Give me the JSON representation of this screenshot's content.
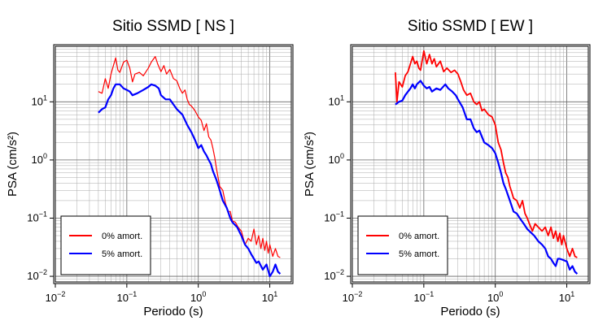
{
  "chart_data": [
    {
      "type": "line",
      "title": "Sitio SSMD [ NS ]",
      "xlabel": "Periodo (s)",
      "ylabel": "PSA (cm/s²)",
      "xscale": "log",
      "yscale": "log",
      "xlim": [
        0.01,
        20
      ],
      "ylim": [
        0.008,
        90
      ],
      "grid": true,
      "legend_position": "bottom-left",
      "x_ticks": [
        {
          "v": 0.01,
          "base": "10",
          "exp": "−2"
        },
        {
          "v": 0.1,
          "base": "10",
          "exp": "−1"
        },
        {
          "v": 1,
          "base": "10",
          "exp": "0"
        },
        {
          "v": 10,
          "base": "10",
          "exp": "1"
        }
      ],
      "y_ticks": [
        {
          "v": 0.01,
          "base": "10",
          "exp": "−2"
        },
        {
          "v": 0.1,
          "base": "10",
          "exp": "−1"
        },
        {
          "v": 1,
          "base": "10",
          "exp": "0"
        },
        {
          "v": 10,
          "base": "10",
          "exp": "1"
        }
      ],
      "series": [
        {
          "name": "0% amort.",
          "color": "#ff0000",
          "width": 1.2,
          "points": [
            [
              0.04,
              15
            ],
            [
              0.045,
              14
            ],
            [
              0.05,
              25
            ],
            [
              0.055,
              17
            ],
            [
              0.06,
              30
            ],
            [
              0.065,
              42
            ],
            [
              0.07,
              57
            ],
            [
              0.075,
              35
            ],
            [
              0.08,
              32
            ],
            [
              0.09,
              48
            ],
            [
              0.1,
              52
            ],
            [
              0.11,
              38
            ],
            [
              0.12,
              22
            ],
            [
              0.13,
              30
            ],
            [
              0.15,
              32
            ],
            [
              0.17,
              28
            ],
            [
              0.2,
              38
            ],
            [
              0.22,
              48
            ],
            [
              0.25,
              60
            ],
            [
              0.27,
              45
            ],
            [
              0.3,
              33
            ],
            [
              0.33,
              42
            ],
            [
              0.36,
              30
            ],
            [
              0.4,
              36
            ],
            [
              0.45,
              25
            ],
            [
              0.5,
              23
            ],
            [
              0.55,
              17
            ],
            [
              0.6,
              14
            ],
            [
              0.65,
              16
            ],
            [
              0.7,
              11
            ],
            [
              0.75,
              9
            ],
            [
              0.8,
              8.5
            ],
            [
              0.9,
              7
            ],
            [
              1.0,
              5.5
            ],
            [
              1.1,
              4.8
            ],
            [
              1.2,
              3.2
            ],
            [
              1.3,
              4.2
            ],
            [
              1.4,
              2.5
            ],
            [
              1.5,
              2.2
            ],
            [
              1.6,
              1.6
            ],
            [
              1.7,
              1.1
            ],
            [
              1.8,
              0.7
            ],
            [
              2.0,
              0.35
            ],
            [
              2.2,
              0.3
            ],
            [
              2.4,
              0.18
            ],
            [
              2.6,
              0.13
            ],
            [
              2.8,
              0.13
            ],
            [
              3.0,
              0.09
            ],
            [
              3.3,
              0.085
            ],
            [
              3.6,
              0.07
            ],
            [
              4.0,
              0.06
            ],
            [
              4.5,
              0.035
            ],
            [
              5.0,
              0.045
            ],
            [
              5.5,
              0.04
            ],
            [
              6.0,
              0.065
            ],
            [
              6.5,
              0.035
            ],
            [
              7.0,
              0.05
            ],
            [
              7.5,
              0.03
            ],
            [
              8.0,
              0.045
            ],
            [
              8.5,
              0.028
            ],
            [
              9.0,
              0.04
            ],
            [
              9.5,
              0.025
            ],
            [
              10.0,
              0.035
            ],
            [
              11.0,
              0.022
            ],
            [
              12.0,
              0.03
            ],
            [
              13.0,
              0.022
            ],
            [
              14.0,
              0.021
            ]
          ]
        },
        {
          "name": "5% amort.",
          "color": "#0000ff",
          "width": 2.2,
          "points": [
            [
              0.04,
              6.5
            ],
            [
              0.045,
              7.5
            ],
            [
              0.05,
              8
            ],
            [
              0.055,
              11
            ],
            [
              0.06,
              13
            ],
            [
              0.065,
              17
            ],
            [
              0.07,
              20
            ],
            [
              0.08,
              20
            ],
            [
              0.09,
              17
            ],
            [
              0.1,
              16
            ],
            [
              0.11,
              15
            ],
            [
              0.12,
              13
            ],
            [
              0.14,
              14
            ],
            [
              0.17,
              16
            ],
            [
              0.2,
              18
            ],
            [
              0.22,
              20
            ],
            [
              0.25,
              19
            ],
            [
              0.28,
              17
            ],
            [
              0.3,
              13
            ],
            [
              0.35,
              11
            ],
            [
              0.4,
              11
            ],
            [
              0.45,
              9
            ],
            [
              0.5,
              7.5
            ],
            [
              0.6,
              6
            ],
            [
              0.7,
              4
            ],
            [
              0.8,
              3
            ],
            [
              0.9,
              2.2
            ],
            [
              1.0,
              1.6
            ],
            [
              1.1,
              1.8
            ],
            [
              1.2,
              1.4
            ],
            [
              1.3,
              1.2
            ],
            [
              1.4,
              1.0
            ],
            [
              1.5,
              0.85
            ],
            [
              1.6,
              0.65
            ],
            [
              1.8,
              0.45
            ],
            [
              2.0,
              0.3
            ],
            [
              2.2,
              0.2
            ],
            [
              2.5,
              0.15
            ],
            [
              2.8,
              0.1
            ],
            [
              3.0,
              0.085
            ],
            [
              3.5,
              0.07
            ],
            [
              4.0,
              0.05
            ],
            [
              4.5,
              0.035
            ],
            [
              5.0,
              0.03
            ],
            [
              5.5,
              0.024
            ],
            [
              6.0,
              0.02
            ],
            [
              6.5,
              0.017
            ],
            [
              7.0,
              0.018
            ],
            [
              8.0,
              0.013
            ],
            [
              9.0,
              0.016
            ],
            [
              10.0,
              0.01
            ],
            [
              11.0,
              0.012
            ],
            [
              12.0,
              0.016
            ],
            [
              13.0,
              0.012
            ],
            [
              14.0,
              0.011
            ]
          ]
        }
      ]
    },
    {
      "type": "line",
      "title": "Sitio SSMD [ EW ]",
      "xlabel": "Periodo (s)",
      "ylabel": "PSA (cm/s²)",
      "xscale": "log",
      "yscale": "log",
      "xlim": [
        0.01,
        20
      ],
      "ylim": [
        0.008,
        90
      ],
      "grid": true,
      "legend_position": "bottom-left",
      "x_ticks": [
        {
          "v": 0.01,
          "base": "10",
          "exp": "−2"
        },
        {
          "v": 0.1,
          "base": "10",
          "exp": "−1"
        },
        {
          "v": 1,
          "base": "10",
          "exp": "0"
        },
        {
          "v": 10,
          "base": "10",
          "exp": "1"
        }
      ],
      "y_ticks": [
        {
          "v": 0.01,
          "base": "10",
          "exp": "−2"
        },
        {
          "v": 0.1,
          "base": "10",
          "exp": "−1"
        },
        {
          "v": 1,
          "base": "10",
          "exp": "0"
        },
        {
          "v": 10,
          "base": "10",
          "exp": "1"
        }
      ],
      "series": [
        {
          "name": "0% amort.",
          "color": "#ff0000",
          "width": 1.8,
          "points": [
            [
              0.04,
              32
            ],
            [
              0.042,
              10
            ],
            [
              0.045,
              22
            ],
            [
              0.05,
              18
            ],
            [
              0.055,
              28
            ],
            [
              0.06,
              33
            ],
            [
              0.065,
              45
            ],
            [
              0.07,
              60
            ],
            [
              0.075,
              45
            ],
            [
              0.08,
              50
            ],
            [
              0.085,
              38
            ],
            [
              0.09,
              35
            ],
            [
              0.1,
              75
            ],
            [
              0.11,
              45
            ],
            [
              0.12,
              65
            ],
            [
              0.13,
              45
            ],
            [
              0.14,
              55
            ],
            [
              0.15,
              40
            ],
            [
              0.17,
              50
            ],
            [
              0.19,
              33
            ],
            [
              0.21,
              38
            ],
            [
              0.24,
              32
            ],
            [
              0.27,
              35
            ],
            [
              0.3,
              30
            ],
            [
              0.33,
              22
            ],
            [
              0.36,
              16
            ],
            [
              0.4,
              13
            ],
            [
              0.45,
              14
            ],
            [
              0.5,
              10
            ],
            [
              0.55,
              9
            ],
            [
              0.6,
              10
            ],
            [
              0.65,
              7
            ],
            [
              0.7,
              7.5
            ],
            [
              0.8,
              6
            ],
            [
              0.9,
              5.5
            ],
            [
              1.0,
              4
            ],
            [
              1.1,
              2
            ],
            [
              1.2,
              1.5
            ],
            [
              1.3,
              0.9
            ],
            [
              1.4,
              0.6
            ],
            [
              1.5,
              0.5
            ],
            [
              1.6,
              0.35
            ],
            [
              1.7,
              0.28
            ],
            [
              1.8,
              0.22
            ],
            [
              2.0,
              0.2
            ],
            [
              2.2,
              0.15
            ],
            [
              2.4,
              0.2
            ],
            [
              2.6,
              0.12
            ],
            [
              2.8,
              0.1
            ],
            [
              3.0,
              0.08
            ],
            [
              3.3,
              0.06
            ],
            [
              3.6,
              0.08
            ],
            [
              4.0,
              0.07
            ],
            [
              4.5,
              0.06
            ],
            [
              5.0,
              0.07
            ],
            [
              5.5,
              0.05
            ],
            [
              6.0,
              0.07
            ],
            [
              6.5,
              0.045
            ],
            [
              7.0,
              0.06
            ],
            [
              7.5,
              0.04
            ],
            [
              8.0,
              0.055
            ],
            [
              8.5,
              0.035
            ],
            [
              9.0,
              0.05
            ],
            [
              10.0,
              0.03
            ],
            [
              11.0,
              0.022
            ],
            [
              12.0,
              0.03
            ],
            [
              13.0,
              0.022
            ],
            [
              14.0,
              0.021
            ]
          ]
        },
        {
          "name": "5% amort.",
          "color": "#0000ff",
          "width": 2.2,
          "points": [
            [
              0.04,
              9
            ],
            [
              0.045,
              10
            ],
            [
              0.05,
              10.5
            ],
            [
              0.055,
              13
            ],
            [
              0.06,
              15
            ],
            [
              0.065,
              17
            ],
            [
              0.07,
              20
            ],
            [
              0.075,
              17
            ],
            [
              0.08,
              20
            ],
            [
              0.09,
              23
            ],
            [
              0.1,
              19
            ],
            [
              0.11,
              17
            ],
            [
              0.12,
              18
            ],
            [
              0.13,
              15
            ],
            [
              0.15,
              17
            ],
            [
              0.17,
              16
            ],
            [
              0.2,
              20
            ],
            [
              0.22,
              17
            ],
            [
              0.25,
              15
            ],
            [
              0.28,
              13
            ],
            [
              0.3,
              11
            ],
            [
              0.35,
              8
            ],
            [
              0.4,
              5
            ],
            [
              0.45,
              5
            ],
            [
              0.5,
              3.5
            ],
            [
              0.55,
              3
            ],
            [
              0.6,
              3.2
            ],
            [
              0.7,
              2
            ],
            [
              0.8,
              1.8
            ],
            [
              0.9,
              1.6
            ],
            [
              1.0,
              1.3
            ],
            [
              1.1,
              0.9
            ],
            [
              1.2,
              0.6
            ],
            [
              1.3,
              0.4
            ],
            [
              1.4,
              0.32
            ],
            [
              1.5,
              0.25
            ],
            [
              1.6,
              0.2
            ],
            [
              1.8,
              0.13
            ],
            [
              2.0,
              0.12
            ],
            [
              2.2,
              0.1
            ],
            [
              2.5,
              0.08
            ],
            [
              2.8,
              0.065
            ],
            [
              3.0,
              0.06
            ],
            [
              3.5,
              0.05
            ],
            [
              4.0,
              0.04
            ],
            [
              4.5,
              0.035
            ],
            [
              5.0,
              0.03
            ],
            [
              5.5,
              0.022
            ],
            [
              6.0,
              0.02
            ],
            [
              6.5,
              0.017
            ],
            [
              7.0,
              0.015
            ],
            [
              7.5,
              0.02
            ],
            [
              8.0,
              0.02
            ],
            [
              9.0,
              0.019
            ],
            [
              10.0,
              0.018
            ],
            [
              11.0,
              0.013
            ],
            [
              12.0,
              0.015
            ],
            [
              13.0,
              0.012
            ],
            [
              14.0,
              0.011
            ]
          ]
        }
      ]
    }
  ]
}
